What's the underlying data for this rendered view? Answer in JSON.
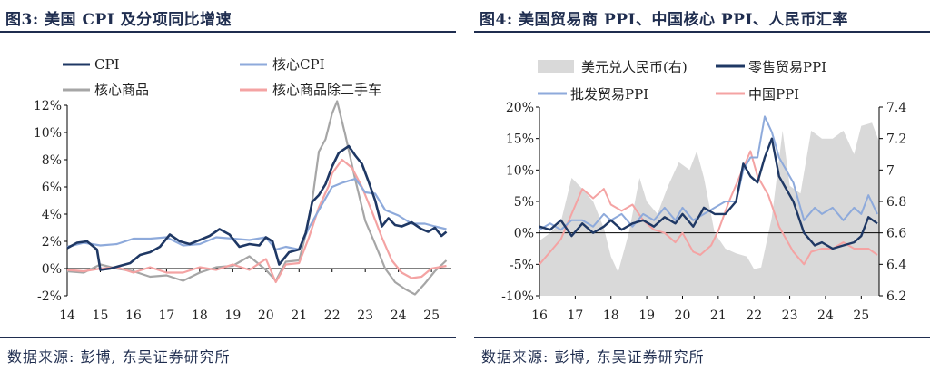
{
  "figures": [
    {
      "title": "图3: 美国 CPI 及分项同比增速",
      "source": "数据来源: 彭博, 东吴证券研究所"
    },
    {
      "title": "图4: 美国贸易商 PPI、中国核心 PPI、人民币汇率",
      "source": "数据来源: 彭博, 东吴证券研究所"
    }
  ],
  "colors": {
    "dark_navy": "#1f3864",
    "light_blue": "#8eaadb",
    "gray": "#a6a6a6",
    "pink": "#f4a3a3",
    "area_gray": "#d9d9d9",
    "axis": "#000000",
    "text": "#1f2d4f"
  },
  "chart_data": [
    {
      "type": "line",
      "x_ticks": [
        "14",
        "15",
        "16",
        "17",
        "18",
        "19",
        "20",
        "21",
        "22",
        "23",
        "24",
        "25"
      ],
      "x_range": [
        2014.0,
        2025.6
      ],
      "ylim": [
        -2,
        12
      ],
      "y_ticks": [
        "-2%",
        "0%",
        "2%",
        "4%",
        "6%",
        "8%",
        "10%",
        "12%"
      ],
      "y_tick_values": [
        -2,
        0,
        2,
        4,
        6,
        8,
        10,
        12
      ],
      "grid": false,
      "legend_placement": "top",
      "series": [
        {
          "name": "CPI",
          "color_key": "dark_navy",
          "x": [
            2014.0,
            2014.3,
            2014.6,
            2014.9,
            2015.0,
            2015.3,
            2015.6,
            2015.9,
            2016.2,
            2016.5,
            2016.8,
            2017.1,
            2017.4,
            2017.7,
            2018.0,
            2018.3,
            2018.6,
            2018.9,
            2019.2,
            2019.5,
            2019.8,
            2020.0,
            2020.2,
            2020.4,
            2020.7,
            2021.0,
            2021.2,
            2021.4,
            2021.6,
            2021.8,
            2022.0,
            2022.2,
            2022.5,
            2022.7,
            2022.9,
            2023.1,
            2023.3,
            2023.5,
            2023.7,
            2023.9,
            2024.1,
            2024.4,
            2024.7,
            2024.9,
            2025.1,
            2025.3,
            2025.45
          ],
          "y": [
            1.5,
            1.9,
            2.0,
            1.4,
            -0.1,
            0.0,
            0.2,
            0.4,
            1.0,
            1.2,
            1.6,
            2.5,
            2.0,
            1.8,
            2.1,
            2.4,
            2.9,
            2.5,
            1.6,
            1.8,
            1.7,
            2.3,
            2.0,
            0.3,
            1.2,
            1.4,
            2.6,
            4.9,
            5.4,
            6.2,
            7.5,
            8.5,
            9.0,
            8.3,
            7.7,
            6.4,
            5.0,
            3.1,
            3.7,
            3.2,
            3.1,
            3.4,
            2.9,
            2.7,
            3.0,
            2.4,
            2.7
          ]
        },
        {
          "name": "核心CPI",
          "color_key": "light_blue",
          "x": [
            2014.0,
            2014.5,
            2015.0,
            2015.5,
            2016.0,
            2016.5,
            2017.0,
            2017.5,
            2018.0,
            2018.5,
            2019.0,
            2019.5,
            2020.0,
            2020.3,
            2020.6,
            2021.0,
            2021.3,
            2021.6,
            2022.0,
            2022.3,
            2022.7,
            2023.0,
            2023.3,
            2023.6,
            2024.0,
            2024.4,
            2024.8,
            2025.1,
            2025.45
          ],
          "y": [
            1.6,
            1.9,
            1.7,
            1.8,
            2.2,
            2.2,
            2.3,
            1.7,
            1.8,
            2.3,
            2.2,
            2.1,
            2.3,
            1.4,
            1.6,
            1.4,
            3.0,
            4.3,
            6.0,
            6.3,
            6.6,
            5.6,
            5.5,
            4.3,
            3.9,
            3.3,
            3.3,
            3.1,
            2.9
          ]
        },
        {
          "name": "核心商品",
          "color_key": "gray",
          "x": [
            2014.0,
            2014.5,
            2015.0,
            2015.5,
            2016.0,
            2016.5,
            2017.0,
            2017.5,
            2018.0,
            2018.5,
            2019.0,
            2019.5,
            2020.0,
            2020.3,
            2020.6,
            2021.0,
            2021.2,
            2021.4,
            2021.6,
            2021.8,
            2022.0,
            2022.15,
            2022.4,
            2022.7,
            2023.0,
            2023.3,
            2023.6,
            2023.9,
            2024.2,
            2024.5,
            2024.8,
            2025.1,
            2025.45
          ],
          "y": [
            -0.2,
            -0.3,
            0.3,
            0.0,
            -0.2,
            -0.6,
            -0.5,
            -0.9,
            -0.3,
            0.1,
            0.2,
            0.9,
            -0.1,
            -0.9,
            0.5,
            0.6,
            2.5,
            5.0,
            8.6,
            9.5,
            11.4,
            12.3,
            9.8,
            6.5,
            3.5,
            1.8,
            0.0,
            -1.0,
            -1.5,
            -1.9,
            -1.1,
            -0.2,
            0.6
          ]
        },
        {
          "name": "核心商品除二手车",
          "color_key": "pink",
          "x": [
            2014.0,
            2014.5,
            2015.0,
            2015.5,
            2016.0,
            2016.5,
            2017.0,
            2017.5,
            2018.0,
            2018.5,
            2019.0,
            2019.5,
            2020.0,
            2020.3,
            2020.6,
            2021.0,
            2021.3,
            2021.6,
            2021.9,
            2022.0,
            2022.3,
            2022.6,
            2022.9,
            2023.2,
            2023.5,
            2023.8,
            2024.1,
            2024.4,
            2024.7,
            2025.0,
            2025.45
          ],
          "y": [
            -0.1,
            -0.2,
            0.0,
            0.1,
            -0.3,
            0.1,
            -0.3,
            -0.3,
            0.1,
            -0.1,
            0.3,
            -0.1,
            0.7,
            -1.0,
            0.3,
            0.4,
            2.3,
            4.5,
            6.1,
            7.0,
            8.0,
            7.4,
            6.0,
            4.2,
            2.3,
            0.6,
            -0.3,
            -0.7,
            -0.6,
            0.0,
            0.2
          ]
        }
      ]
    },
    {
      "type": "line",
      "x_ticks": [
        "16",
        "17",
        "18",
        "19",
        "20",
        "21",
        "22",
        "23",
        "24",
        "25"
      ],
      "x_range": [
        2016.0,
        2025.5
      ],
      "ylim": [
        -10,
        20
      ],
      "y_ticks": [
        "-10%",
        "-5%",
        "0%",
        "5%",
        "10%",
        "15%",
        "20%"
      ],
      "y_tick_values": [
        -10,
        -5,
        0,
        5,
        10,
        15,
        20
      ],
      "y2lim": [
        6.2,
        7.4
      ],
      "y2_ticks": [
        "6.2",
        "6.4",
        "6.6",
        "6.8",
        "7",
        "7.2",
        "7.4"
      ],
      "y2_tick_values": [
        6.2,
        6.4,
        6.6,
        6.8,
        7.0,
        7.2,
        7.4
      ],
      "grid": false,
      "legend_placement": "top",
      "series": [
        {
          "name": "美元兑人民币(右)",
          "style": "area",
          "axis": "right",
          "color_key": "area_gray",
          "x": [
            2016.0,
            2016.3,
            2016.6,
            2016.9,
            2017.2,
            2017.5,
            2017.8,
            2018.0,
            2018.2,
            2018.5,
            2018.8,
            2019.0,
            2019.3,
            2019.6,
            2019.9,
            2020.2,
            2020.4,
            2020.6,
            2020.9,
            2021.2,
            2021.5,
            2021.8,
            2022.0,
            2022.2,
            2022.5,
            2022.8,
            2023.0,
            2023.3,
            2023.6,
            2023.9,
            2024.2,
            2024.5,
            2024.8,
            2025.0,
            2025.3,
            2025.5
          ],
          "y": [
            6.55,
            6.6,
            6.67,
            6.95,
            6.88,
            6.8,
            6.63,
            6.45,
            6.35,
            6.6,
            6.95,
            6.8,
            6.72,
            6.9,
            7.05,
            7.0,
            7.12,
            6.95,
            6.6,
            6.5,
            6.47,
            6.45,
            6.37,
            6.38,
            6.7,
            7.25,
            6.9,
            6.85,
            7.25,
            7.2,
            7.2,
            7.25,
            7.1,
            7.28,
            7.3,
            7.18
          ]
        },
        {
          "name": "零售贸易PPI",
          "axis": "left",
          "color_key": "dark_navy",
          "x": [
            2016.0,
            2016.3,
            2016.6,
            2016.9,
            2017.2,
            2017.5,
            2017.8,
            2018.0,
            2018.3,
            2018.6,
            2018.9,
            2019.2,
            2019.5,
            2019.8,
            2020.0,
            2020.3,
            2020.6,
            2020.9,
            2021.2,
            2021.5,
            2021.7,
            2021.9,
            2022.1,
            2022.3,
            2022.5,
            2022.7,
            2022.9,
            2023.1,
            2023.4,
            2023.7,
            2023.9,
            2024.2,
            2024.5,
            2024.8,
            2025.0,
            2025.2,
            2025.45
          ],
          "y": [
            1,
            0.5,
            2,
            -0.5,
            1.5,
            0,
            1,
            2,
            0.5,
            1.5,
            2,
            1,
            2.5,
            1.5,
            3,
            1,
            4,
            3,
            3,
            5,
            11,
            9,
            8,
            12,
            15,
            9,
            7,
            5,
            0,
            -2,
            -1.5,
            -2.5,
            -2,
            -1.5,
            -0.5,
            2.5,
            1.5
          ]
        },
        {
          "name": "批发贸易PPI",
          "axis": "left",
          "color_key": "light_blue",
          "x": [
            2016.0,
            2016.3,
            2016.6,
            2016.9,
            2017.2,
            2017.5,
            2017.8,
            2018.0,
            2018.3,
            2018.6,
            2018.9,
            2019.2,
            2019.5,
            2019.8,
            2020.0,
            2020.3,
            2020.6,
            2020.9,
            2021.2,
            2021.5,
            2021.7,
            2021.9,
            2022.1,
            2022.3,
            2022.5,
            2022.7,
            2022.9,
            2023.1,
            2023.4,
            2023.7,
            2023.9,
            2024.2,
            2024.5,
            2024.8,
            2025.0,
            2025.2,
            2025.45
          ],
          "y": [
            0.5,
            1.5,
            0.5,
            2,
            2,
            1,
            3,
            2,
            3,
            1,
            3,
            2,
            4,
            2,
            4,
            2,
            3,
            4,
            5,
            5,
            10,
            12,
            12,
            18.5,
            16,
            12,
            10,
            8,
            2,
            4,
            3,
            4,
            2,
            4,
            3,
            6,
            3
          ]
        },
        {
          "name": "中国PPI",
          "axis": "left",
          "color_key": "pink",
          "x": [
            2016.0,
            2016.3,
            2016.6,
            2016.9,
            2017.2,
            2017.5,
            2017.8,
            2018.0,
            2018.3,
            2018.6,
            2018.9,
            2019.2,
            2019.5,
            2019.8,
            2020.0,
            2020.3,
            2020.5,
            2020.8,
            2021.0,
            2021.3,
            2021.6,
            2021.9,
            2022.1,
            2022.4,
            2022.7,
            2022.9,
            2023.1,
            2023.4,
            2023.6,
            2023.9,
            2024.2,
            2024.5,
            2024.8,
            2025.0,
            2025.2,
            2025.45
          ],
          "y": [
            -5,
            -3,
            -1,
            3,
            7,
            5.5,
            7,
            4.5,
            3.5,
            4.5,
            2,
            0.5,
            0,
            -1.5,
            0,
            -3,
            -3.5,
            -2,
            0.3,
            5,
            9,
            13,
            9,
            6,
            1,
            -1,
            -3,
            -5,
            -3,
            -2.5,
            -2.5,
            -1.5,
            -2.5,
            -2.5,
            -2.5,
            -3.5
          ]
        }
      ]
    }
  ]
}
